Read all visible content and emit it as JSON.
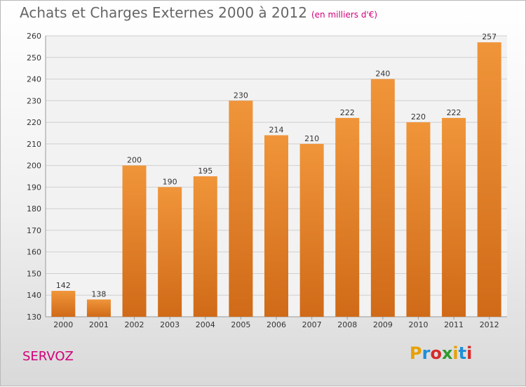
{
  "header": {
    "title": "Achats et Charges Externes 2000 à 2012",
    "subtitle": "(en milliers d'€)"
  },
  "footer": {
    "place": "SERVOZ"
  },
  "logo": {
    "letters": [
      "P",
      "r",
      "o",
      "x",
      "i",
      "t",
      "i"
    ],
    "colors": [
      "#e8a000",
      "#1f8fd6",
      "#d62a2a",
      "#2f9a2f",
      "#e8a000",
      "#1f8fd6",
      "#d62a2a"
    ]
  },
  "chart_data": {
    "type": "bar",
    "title": "Achats et Charges Externes 2000 à 2012",
    "subtitle": "(en milliers d'€)",
    "xlabel": "",
    "ylabel": "",
    "categories": [
      "2000",
      "2001",
      "2002",
      "2003",
      "2004",
      "2005",
      "2006",
      "2007",
      "2008",
      "2009",
      "2010",
      "2011",
      "2012"
    ],
    "values": [
      142,
      138,
      200,
      190,
      195,
      230,
      214,
      210,
      222,
      240,
      220,
      222,
      257
    ],
    "ylim": [
      130,
      260
    ],
    "yticks": [
      130,
      140,
      150,
      160,
      170,
      180,
      190,
      200,
      210,
      220,
      230,
      240,
      250,
      260
    ],
    "grid": true,
    "legend": "none",
    "bar_color": "#f0953a",
    "bar_color_dark": "#d06a18"
  }
}
